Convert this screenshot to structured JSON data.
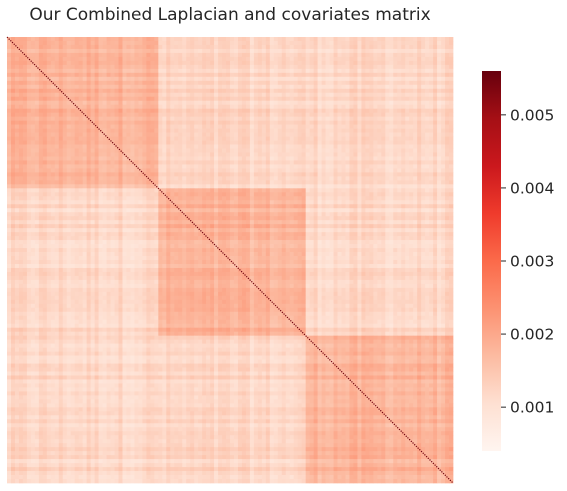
{
  "chart_data": {
    "type": "heatmap",
    "title": "Our Combined Laplacian and covariates matrix",
    "matrix_blocks": 3,
    "block_mean_value": 0.0018,
    "off_block_mean_value": 0.0012,
    "diagonal_value": 0.0055,
    "colorbar": {
      "colormap": "Reds",
      "vmin": 0.0004,
      "vmax": 0.0056,
      "ticks": [
        0.001,
        0.002,
        0.003,
        0.004,
        0.005
      ],
      "tick_labels": [
        "0.001",
        "0.002",
        "0.003",
        "0.004",
        "0.005"
      ]
    },
    "xlabel": "",
    "ylabel": "",
    "grid": false
  }
}
